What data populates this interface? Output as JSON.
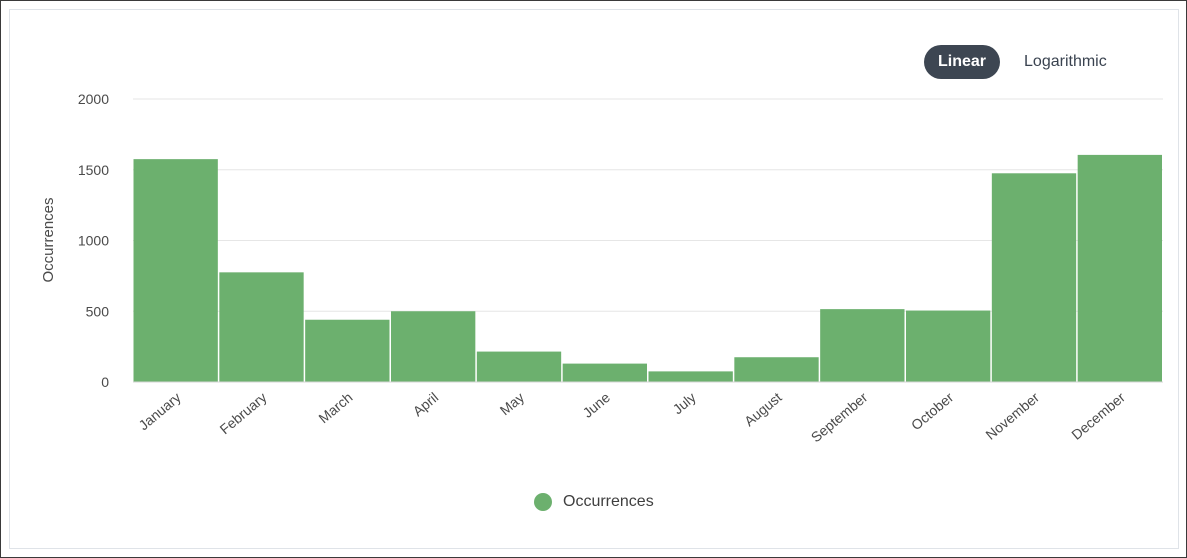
{
  "scale_toggle": {
    "linear_label": "Linear",
    "log_label": "Logarithmic",
    "active": "Linear"
  },
  "colors": {
    "bar": "#6cb06e",
    "grid": "#e6e6e6",
    "active_toggle": "#3d4652"
  },
  "chart_data": {
    "type": "bar",
    "title": "",
    "xlabel": "",
    "ylabel": "Occurrences",
    "ylim": [
      0,
      2000
    ],
    "yticks": [
      0,
      500,
      1000,
      1500,
      2000
    ],
    "grid": true,
    "legend_position": "bottom-center",
    "categories": [
      "January",
      "February",
      "March",
      "April",
      "May",
      "June",
      "July",
      "August",
      "September",
      "October",
      "November",
      "December"
    ],
    "series": [
      {
        "name": "Occurrences",
        "values": [
          1575,
          775,
          440,
          500,
          215,
          130,
          75,
          175,
          515,
          505,
          1475,
          1605
        ]
      }
    ]
  }
}
